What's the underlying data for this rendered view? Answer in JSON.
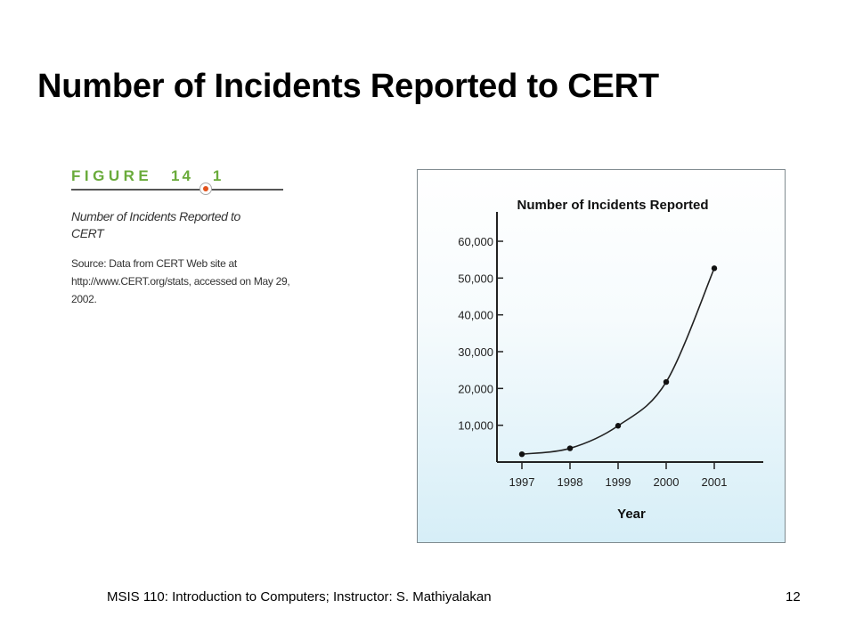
{
  "slide": {
    "title": "Number of Incidents Reported to CERT",
    "footer": "MSIS 110:  Introduction to Computers;  Instructor: S. Mathiyalakan",
    "page_number": "12"
  },
  "figure": {
    "label": "FIGURE",
    "number": "14",
    "number_suffix": "1",
    "description": "Number of Incidents Reported to CERT",
    "source": "Source: Data from CERT Web site at http://www.CERT.org/stats, accessed on May 29, 2002."
  },
  "chart_data": {
    "type": "line",
    "title": "Number of Incidents Reported",
    "xlabel": "Year",
    "ylabel": "",
    "x": [
      "1997",
      "1998",
      "1999",
      "2000",
      "2001"
    ],
    "values": [
      2134,
      3734,
      9859,
      21756,
      52658
    ],
    "yticks": [
      10000,
      20000,
      30000,
      40000,
      50000,
      60000
    ],
    "ytick_labels": [
      "10,000",
      "20,000",
      "30,000",
      "40,000",
      "50,000",
      "60,000"
    ],
    "ylim": [
      0,
      60000
    ],
    "grid": false,
    "legend": "none",
    "line_color": "#222222"
  }
}
